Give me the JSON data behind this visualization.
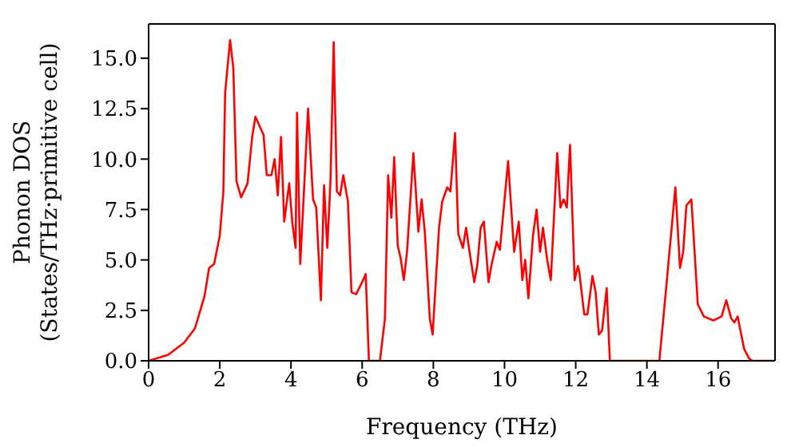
{
  "chart_data": {
    "type": "line",
    "xlabel": "Frequency (THz)",
    "ylabel": "Phonon DOS\n(States/THz·primitive cell)",
    "xlim": [
      0,
      17.6
    ],
    "xticks": [
      0,
      2,
      4,
      6,
      8,
      10,
      12,
      14,
      16
    ],
    "ylim": [
      0,
      16.7
    ],
    "yticks": [
      {
        "value": 0,
        "label": "0.0"
      },
      {
        "value": 2.5,
        "label": "2.5"
      },
      {
        "value": 5,
        "label": "5.0"
      },
      {
        "value": 7.5,
        "label": "7.5"
      },
      {
        "value": 10,
        "label": "10.0"
      },
      {
        "value": 12.5,
        "label": "12.5"
      },
      {
        "value": 15,
        "label": "15.0"
      }
    ],
    "marker": "none",
    "line_style": "solid",
    "x": [
      0,
      0.55,
      1.0,
      1.3,
      1.57,
      1.7,
      1.84,
      2.0,
      2.1,
      2.15,
      2.29,
      2.38,
      2.47,
      2.6,
      2.78,
      2.91,
      3.0,
      3.23,
      3.32,
      3.45,
      3.54,
      3.63,
      3.72,
      3.81,
      3.95,
      4.04,
      4.13,
      4.17,
      4.26,
      4.35,
      4.48,
      4.62,
      4.71,
      4.84,
      4.93,
      5.02,
      5.11,
      5.2,
      5.29,
      5.38,
      5.47,
      5.6,
      5.7,
      5.83,
      6.0,
      6.1,
      6.19,
      6.5,
      6.64,
      6.73,
      6.82,
      6.9,
      7.0,
      7.08,
      7.17,
      7.26,
      7.44,
      7.58,
      7.67,
      7.76,
      7.9,
      7.98,
      8.16,
      8.25,
      8.39,
      8.48,
      8.61,
      8.7,
      8.83,
      8.92,
      9.0,
      9.15,
      9.24,
      9.33,
      9.42,
      9.55,
      9.64,
      9.78,
      9.87,
      10.1,
      10.27,
      10.4,
      10.5,
      10.58,
      10.67,
      10.8,
      10.9,
      11.0,
      11.08,
      11.2,
      11.3,
      11.48,
      11.57,
      11.66,
      11.75,
      11.84,
      11.97,
      12.06,
      12.1,
      12.24,
      12.33,
      12.47,
      12.56,
      12.65,
      12.74,
      12.87,
      12.96,
      14.35,
      14.53,
      14.8,
      14.93,
      15.02,
      15.11,
      15.25,
      15.43,
      15.6,
      15.87,
      16.1,
      16.23,
      16.37,
      16.46,
      16.55,
      16.73,
      16.86,
      16.95,
      17.58
    ],
    "series": [
      {
        "color": "#ff0000",
        "values": [
          0,
          0.3,
          0.9,
          1.6,
          3.2,
          4.6,
          4.8,
          6.2,
          8.4,
          13.3,
          15.9,
          14.5,
          8.9,
          8.1,
          8.8,
          11.1,
          12.1,
          11.2,
          9.2,
          9.2,
          10.0,
          8.2,
          11.1,
          6.9,
          8.8,
          6.8,
          5.6,
          12.3,
          4.8,
          7.9,
          12.5,
          8.0,
          7.6,
          3.0,
          8.7,
          5.6,
          8.9,
          15.8,
          8.4,
          8.2,
          9.2,
          7.9,
          3.4,
          3.3,
          3.9,
          4.3,
          0,
          0,
          2.1,
          9.2,
          7.1,
          10.1,
          5.7,
          5.1,
          4.0,
          5.4,
          10.3,
          6.4,
          8.0,
          6.4,
          2.1,
          1.3,
          6.6,
          7.9,
          8.6,
          8.4,
          11.3,
          6.3,
          5.6,
          6.6,
          5.6,
          3.9,
          4.8,
          6.6,
          6.9,
          3.9,
          4.8,
          5.9,
          5.5,
          9.9,
          5.4,
          6.9,
          4.0,
          5.0,
          3.1,
          6.2,
          7.5,
          5.4,
          6.6,
          5.0,
          4.0,
          10.3,
          7.6,
          8.0,
          7.6,
          10.7,
          4.0,
          4.7,
          4.4,
          2.3,
          2.3,
          4.2,
          3.4,
          1.3,
          1.5,
          3.6,
          0,
          0,
          3.4,
          8.6,
          4.6,
          5.4,
          7.7,
          8.0,
          2.8,
          2.2,
          2.0,
          2.2,
          3.0,
          2.1,
          1.9,
          2.2,
          0.6,
          0.15,
          0,
          0
        ]
      }
    ]
  }
}
